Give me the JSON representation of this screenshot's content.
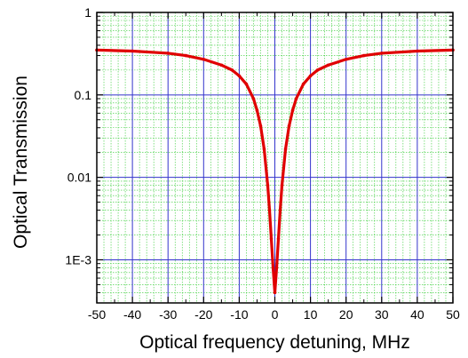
{
  "chart_data": {
    "type": "line",
    "title": "",
    "xlabel": "Optical frequency detuning, MHz",
    "ylabel": "Optical Transmission",
    "xlim": [
      -50,
      50
    ],
    "ylim": [
      0.0003,
      1
    ],
    "yscale": "log",
    "x_ticks": [
      -50,
      -40,
      -30,
      -20,
      -10,
      0,
      10,
      20,
      30,
      40,
      50
    ],
    "x_tick_labels": [
      "-50",
      "-40",
      "-30",
      "-20",
      "-10",
      "0",
      "10",
      "20",
      "30",
      "40",
      "50"
    ],
    "y_ticks": [
      0.001,
      0.01,
      0.1,
      1
    ],
    "y_tick_labels": [
      "1E-3",
      "0.01",
      "0.1",
      "1"
    ],
    "grid": true,
    "grid_major_color": "#3333cc",
    "grid_minor_color": "#33cc33",
    "line_color": "#e00000",
    "series": [
      {
        "x": [
          -50,
          -40,
          -30,
          -25,
          -20,
          -15,
          -12,
          -10,
          -8,
          -6,
          -5,
          -4,
          -3,
          -2,
          -1.5,
          -1,
          -0.5,
          0,
          0.5,
          1,
          1.5,
          2,
          3,
          4,
          5,
          6,
          8,
          10,
          12,
          15,
          20,
          25,
          30,
          40,
          50
        ],
        "y": [
          0.35,
          0.34,
          0.32,
          0.3,
          0.27,
          0.23,
          0.2,
          0.17,
          0.135,
          0.09,
          0.065,
          0.042,
          0.022,
          0.008,
          0.004,
          0.0018,
          0.0008,
          0.0004,
          0.0008,
          0.0018,
          0.004,
          0.008,
          0.022,
          0.042,
          0.065,
          0.09,
          0.135,
          0.17,
          0.2,
          0.23,
          0.27,
          0.3,
          0.32,
          0.34,
          0.35
        ]
      }
    ]
  }
}
